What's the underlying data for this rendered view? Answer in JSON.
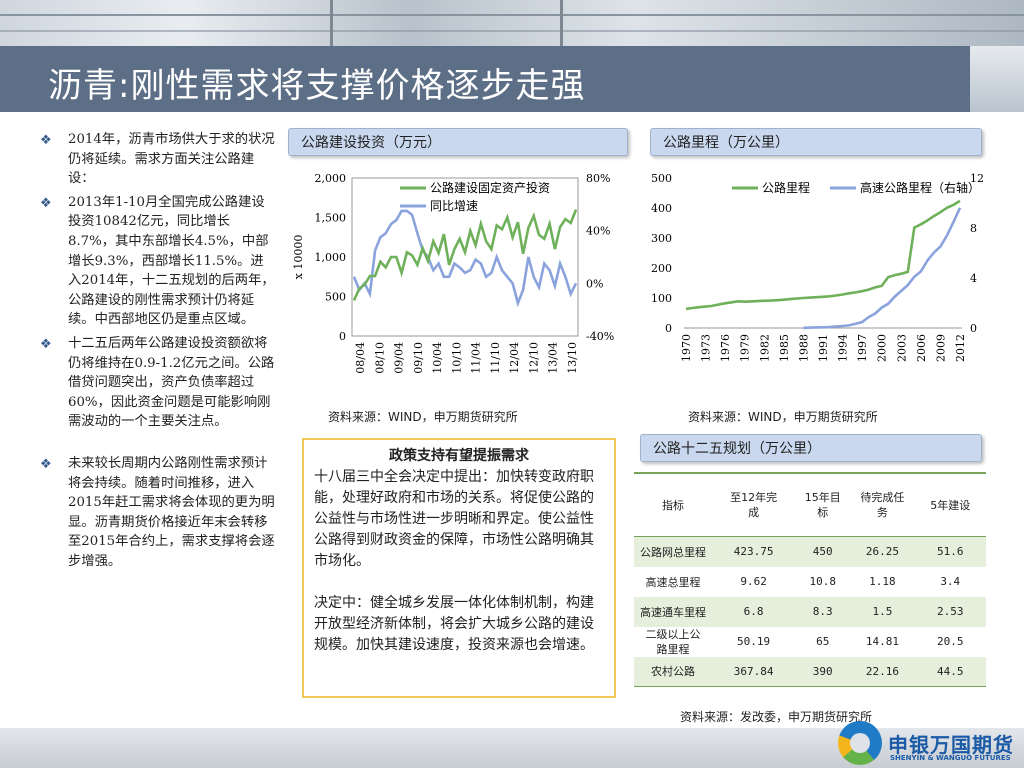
{
  "title": "沥青:刚性需求将支撑价格逐步走强",
  "bullets": [
    "2014年，沥青市场供大于求的状况仍将延续。需求方面关注公路建设：",
    "2013年1-10月全国完成公路建设投资10842亿元，同比增长8.7%，其中东部增长4.5%，中部增长9.3%，西部增长11.5%。进入2014年，十二五规划的后两年，公路建设的刚性需求预计仍将延续。中西部地区仍是重点区域。",
    "十二五后两年公路建设投资额欲将仍将维持在0.9-1.2亿元之间。公路借贷问题突出，资产负债率超过60%，因此资金问题是可能影响刚需波动的一个主要关注点。",
    "未来较长周期内公路刚性需求预计将会持续。随着时间推移，进入2015年赶工需求将会体现的更为明显。沥青期货价格接近年末会转移至2015年合约上，需求支撑将会逐步增强。"
  ],
  "chart1": {
    "header": "公路建设投资（万元）",
    "source": "资料来源：WIND，申万期货研究所"
  },
  "chart2": {
    "header": "公路里程（万公里）",
    "source": "资料来源：WIND，申万期货研究所"
  },
  "policy": {
    "heading": "政策支持有望提振需求",
    "para1": "十八届三中全会决定中提出：加快转变政府职能，处理好政府和市场的关系。将促使公路的公益性与市场性进一步明晰和界定。使公益性公路得到财政资金的保障，市场性公路明确其市场化。",
    "para2": "决定中：健全城乡发展一体化体制机制，构建开放型经济新体制，将会扩大城乡公路的建设规模。加快其建设速度，投资来源也会增速。"
  },
  "table": {
    "header": "公路十二五规划（万公里）",
    "columns": [
      "指标",
      "至12年完成",
      "15年目标",
      "待完成任务",
      "5年建设"
    ],
    "rows": [
      [
        "公路网总里程",
        "423.75",
        "450",
        "26.25",
        "51.6"
      ],
      [
        "高速总里程",
        "9.62",
        "10.8",
        "1.18",
        "3.4"
      ],
      [
        "高速通车里程",
        "6.8",
        "8.3",
        "1.5",
        "2.53"
      ],
      [
        "二级以上公路里程",
        "50.19",
        "65",
        "14.81",
        "20.5"
      ],
      [
        "农村公路",
        "367.84",
        "390",
        "22.16",
        "44.5"
      ]
    ],
    "source": "资料来源：发改委，申万期货研究所"
  },
  "logo": {
    "cn": "申银万国期货",
    "en": "SHENYIN & WANGUO FUTURES"
  },
  "chart_data": [
    {
      "type": "line",
      "unit_label": "x 10000",
      "x_tick_labels": [
        "08/04",
        "08/10",
        "09/04",
        "09/10",
        "10/04",
        "10/10",
        "11/04",
        "11/10",
        "12/04",
        "12/10",
        "13/04",
        "13/10"
      ],
      "ylim_left": [
        0,
        2000
      ],
      "y_ticks_left": [
        "0",
        "500",
        "1,000",
        "1,500",
        "2,000"
      ],
      "ylim_right": [
        -40,
        80
      ],
      "y_ticks_right": [
        "-40%",
        "0%",
        "40%",
        "80%"
      ],
      "legend_position": "top-right",
      "colors": {
        "invest": "#6fb05a",
        "yoy": "#8aa3dd"
      },
      "series": [
        {
          "name": "公路建设固定资产投资",
          "axis": "left",
          "values": [
            450,
            600,
            650,
            760,
            760,
            940,
            870,
            1000,
            1000,
            800,
            1060,
            1020,
            900,
            1110,
            950,
            1200,
            1050,
            1290,
            900,
            1100,
            1230,
            1060,
            1330,
            1150,
            1420,
            1200,
            1100,
            1400,
            1350,
            1500,
            1250,
            1440,
            1040,
            1370,
            1520,
            1280,
            1230,
            1420,
            1100,
            1380,
            1480,
            1430,
            1600
          ]
        },
        {
          "name": "同比增速",
          "axis": "right",
          "values": [
            5,
            -5,
            0,
            -8,
            25,
            35,
            38,
            45,
            48,
            55,
            55,
            52,
            38,
            25,
            20,
            10,
            15,
            5,
            5,
            15,
            12,
            8,
            10,
            18,
            15,
            5,
            8,
            20,
            10,
            5,
            0,
            -15,
            -5,
            20,
            5,
            -3,
            15,
            10,
            -2,
            15,
            5,
            -8,
            0
          ]
        }
      ]
    },
    {
      "type": "line",
      "x_tick_labels": [
        "1970",
        "1973",
        "1976",
        "1979",
        "1982",
        "1985",
        "1988",
        "1991",
        "1994",
        "1997",
        "2000",
        "2003",
        "2006",
        "2009",
        "2012"
      ],
      "ylim_left": [
        0,
        500
      ],
      "y_ticks_left": [
        "0",
        "100",
        "200",
        "300",
        "400",
        "500"
      ],
      "ylim_right": [
        0,
        12
      ],
      "y_ticks_right": [
        "0",
        "4",
        "8",
        "12"
      ],
      "legend_position": "top-right",
      "colors": {
        "total": "#6fb05a",
        "express": "#8aa3dd"
      },
      "series": [
        {
          "name": "公路里程",
          "axis": "left",
          "x": [
            1970,
            1971,
            1972,
            1973,
            1974,
            1975,
            1976,
            1977,
            1978,
            1979,
            1980,
            1981,
            1982,
            1983,
            1984,
            1985,
            1986,
            1987,
            1988,
            1989,
            1990,
            1991,
            1992,
            1993,
            1994,
            1995,
            1996,
            1997,
            1998,
            1999,
            2000,
            2001,
            2002,
            2003,
            2004,
            2005,
            2006,
            2007,
            2008,
            2009,
            2010,
            2011,
            2012
          ],
          "values": [
            63.7,
            66.7,
            69.2,
            71.4,
            73.5,
            78.4,
            82.3,
            85.6,
            89.0,
            87.6,
            88.8,
            89.8,
            90.7,
            91.5,
            92.7,
            94.2,
            96.3,
            98.2,
            99.9,
            101.4,
            102.8,
            104.1,
            105.7,
            108.4,
            111.8,
            115.7,
            118.6,
            122.6,
            127.9,
            135.2,
            140.3,
            169.8,
            176.5,
            181.0,
            187.1,
            334.5,
            345.7,
            358.4,
            373.0,
            386.1,
            400.8,
            410.6,
            423.8
          ]
        },
        {
          "name": "高速公路里程（右轴）",
          "axis": "right",
          "x": [
            1988,
            1989,
            1990,
            1991,
            1992,
            1993,
            1994,
            1995,
            1996,
            1997,
            1998,
            1999,
            2000,
            2001,
            2002,
            2003,
            2004,
            2005,
            2006,
            2007,
            2008,
            2009,
            2010,
            2011,
            2012
          ],
          "values": [
            0.01,
            0.03,
            0.05,
            0.06,
            0.07,
            0.11,
            0.16,
            0.21,
            0.34,
            0.48,
            0.87,
            1.16,
            1.63,
            1.94,
            2.51,
            2.97,
            3.43,
            4.1,
            4.53,
            5.39,
            6.03,
            6.51,
            7.41,
            8.49,
            9.62
          ]
        }
      ]
    }
  ]
}
